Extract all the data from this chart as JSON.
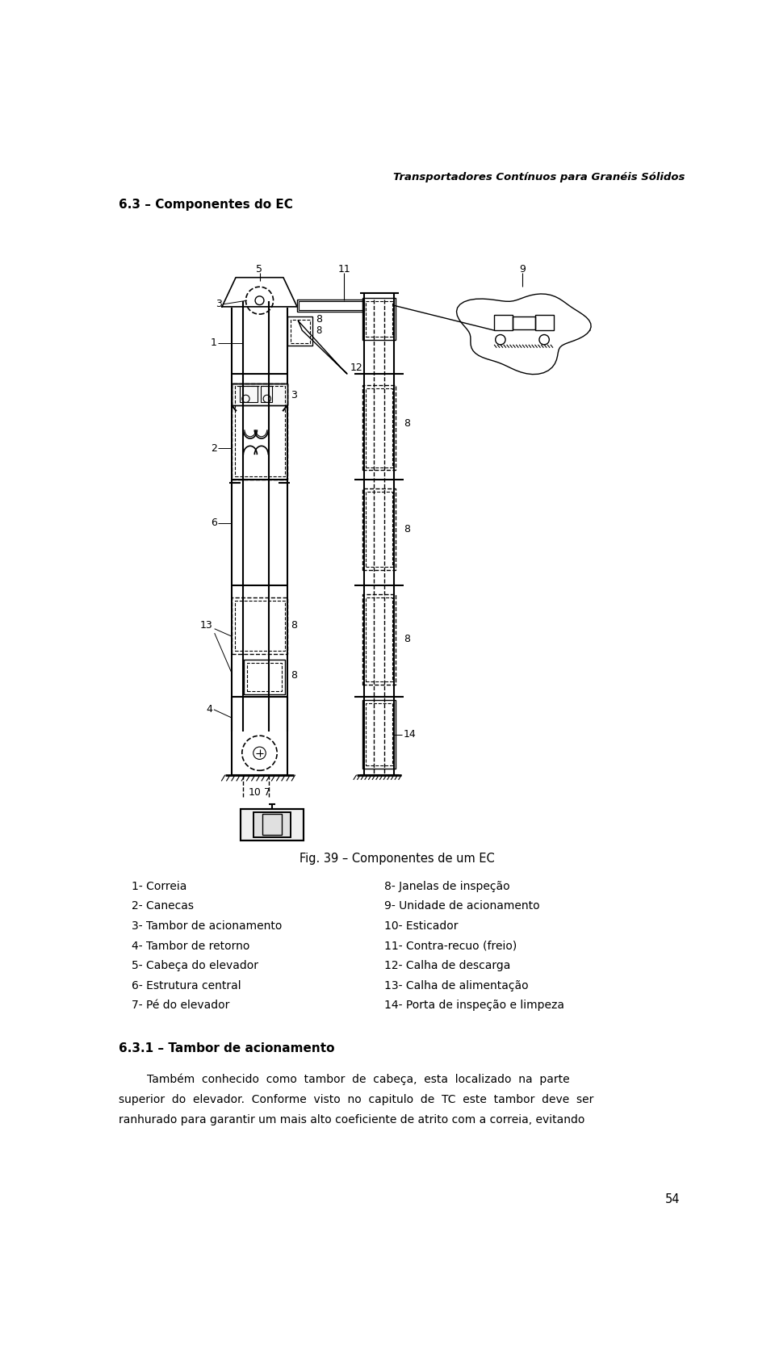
{
  "header_title": "Transportadores Contínuos para Granéis Sólidos",
  "section_title": "6.3 – Componentes do EC",
  "fig_caption": "Fig. 39 – Componentes de um EC",
  "legend_left": [
    "1- Correia",
    "2- Canecas",
    "3- Tambor de acionamento",
    "4- Tambor de retorno",
    "5- Cabeça do elevador",
    "6- Estrutura central",
    "7- Pé do elevador"
  ],
  "legend_right": [
    "8- Janelas de inspeção",
    "9- Unidade de acionamento",
    "10- Esticador",
    "11- Contra-recuo (freio)",
    "12- Calha de descarga",
    "13- Calha de alimentação",
    "14- Porta de inspeção e limpeza"
  ],
  "subsection_title": "6.3.1 – Tambor de acionamento",
  "page_number": "54",
  "bg_color": "#ffffff",
  "text_color": "#000000"
}
